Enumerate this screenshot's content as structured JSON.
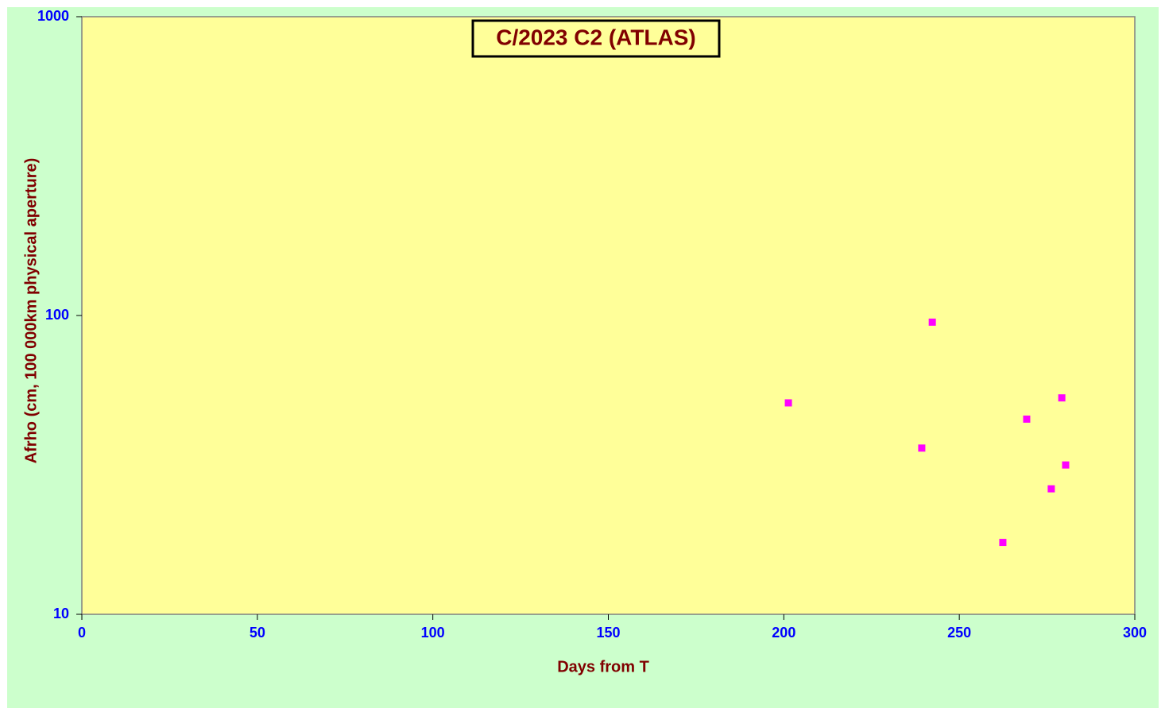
{
  "chart_data": {
    "type": "scatter",
    "title": "C/2023 C2 (ATLAS)",
    "x_label": "Days from  T",
    "y_label": "Afrho (cm, 100 000km physical aperture)",
    "series": [
      {
        "color": "#ff00ff",
        "x": [
          201.3,
          242.3,
          239.3,
          262.4,
          269.2,
          276.2,
          279.2,
          280.3
        ],
        "values": [
          51,
          95,
          36,
          17.4,
          45,
          26.3,
          53,
          31.6
        ]
      }
    ],
    "xlim": [
      0,
      300
    ],
    "xticks": [
      0,
      50,
      100,
      150,
      200,
      250,
      300
    ],
    "ylim": [
      10,
      1000
    ],
    "yticks": [
      10,
      100,
      1000
    ],
    "y_scale": "log"
  }
}
